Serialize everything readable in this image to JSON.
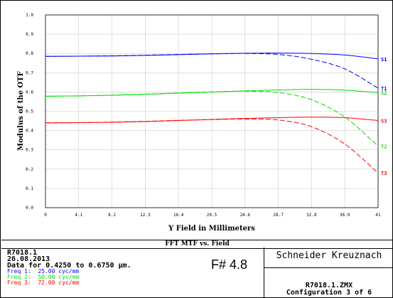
{
  "chart_data": {
    "type": "line",
    "title": "FFT MTF vs. Field",
    "xlabel": "Y Field in Millimeters",
    "ylabel": "Modulus of the OTF",
    "xlim": [
      0,
      41
    ],
    "ylim": [
      0,
      1.0
    ],
    "xticks": [
      "0",
      "4.1",
      "8.2",
      "12.3",
      "16.4",
      "20.5",
      "24.6",
      "28.7",
      "32.8",
      "36.9",
      "41"
    ],
    "yticks": [
      "0.0",
      "0.1",
      "0.2",
      "0.3",
      "0.4",
      "0.5",
      "0.6",
      "0.7",
      "0.8",
      "0.9",
      "1.0"
    ],
    "grid": true,
    "x": [
      0,
      4.1,
      8.2,
      12.3,
      16.4,
      20.5,
      24.6,
      28.7,
      32.8,
      36.9,
      41
    ],
    "series": [
      {
        "name": "S1",
        "color": "#0000ff",
        "style": "solid",
        "values": [
          0.785,
          0.786,
          0.787,
          0.79,
          0.794,
          0.798,
          0.801,
          0.802,
          0.8,
          0.792,
          0.772
        ]
      },
      {
        "name": "T1",
        "color": "#0000ff",
        "style": "dashed",
        "values": [
          0.785,
          0.786,
          0.788,
          0.791,
          0.795,
          0.798,
          0.8,
          0.795,
          0.77,
          0.72,
          0.62
        ]
      },
      {
        "name": "S2",
        "color": "#00dd00",
        "style": "solid",
        "values": [
          0.578,
          0.58,
          0.583,
          0.588,
          0.594,
          0.6,
          0.606,
          0.611,
          0.614,
          0.61,
          0.597
        ]
      },
      {
        "name": "T2",
        "color": "#00dd00",
        "style": "dashed",
        "values": [
          0.578,
          0.58,
          0.584,
          0.589,
          0.595,
          0.601,
          0.604,
          0.597,
          0.56,
          0.47,
          0.32
        ]
      },
      {
        "name": "S3",
        "color": "#ff0000",
        "style": "solid",
        "values": [
          0.44,
          0.441,
          0.443,
          0.447,
          0.452,
          0.458,
          0.463,
          0.467,
          0.47,
          0.467,
          0.452
        ]
      },
      {
        "name": "T3",
        "color": "#ff0000",
        "style": "dashed",
        "values": [
          0.44,
          0.441,
          0.444,
          0.448,
          0.453,
          0.457,
          0.46,
          0.455,
          0.42,
          0.33,
          0.18
        ]
      }
    ]
  },
  "footer": {
    "lens_id": "R7018.1",
    "date": "26.08.2013",
    "wavelength": "Data for 0.4250 to 0.6750 µm.",
    "freqs": [
      {
        "label": "Freq 1:",
        "value": "25.00 cyc/mm",
        "color": "#0000ff"
      },
      {
        "label": "Freq 2:",
        "value": "50.00 cyc/mm",
        "color": "#00dd00"
      },
      {
        "label": "Freq 3:",
        "value": "72.00 cyc/mm",
        "color": "#ff0000"
      }
    ],
    "fnumber": "F# 4.8",
    "company": "Schneider Kreuznach",
    "file": "R7018.1.ZMX",
    "configuration": "Configuration 3 of 6"
  }
}
